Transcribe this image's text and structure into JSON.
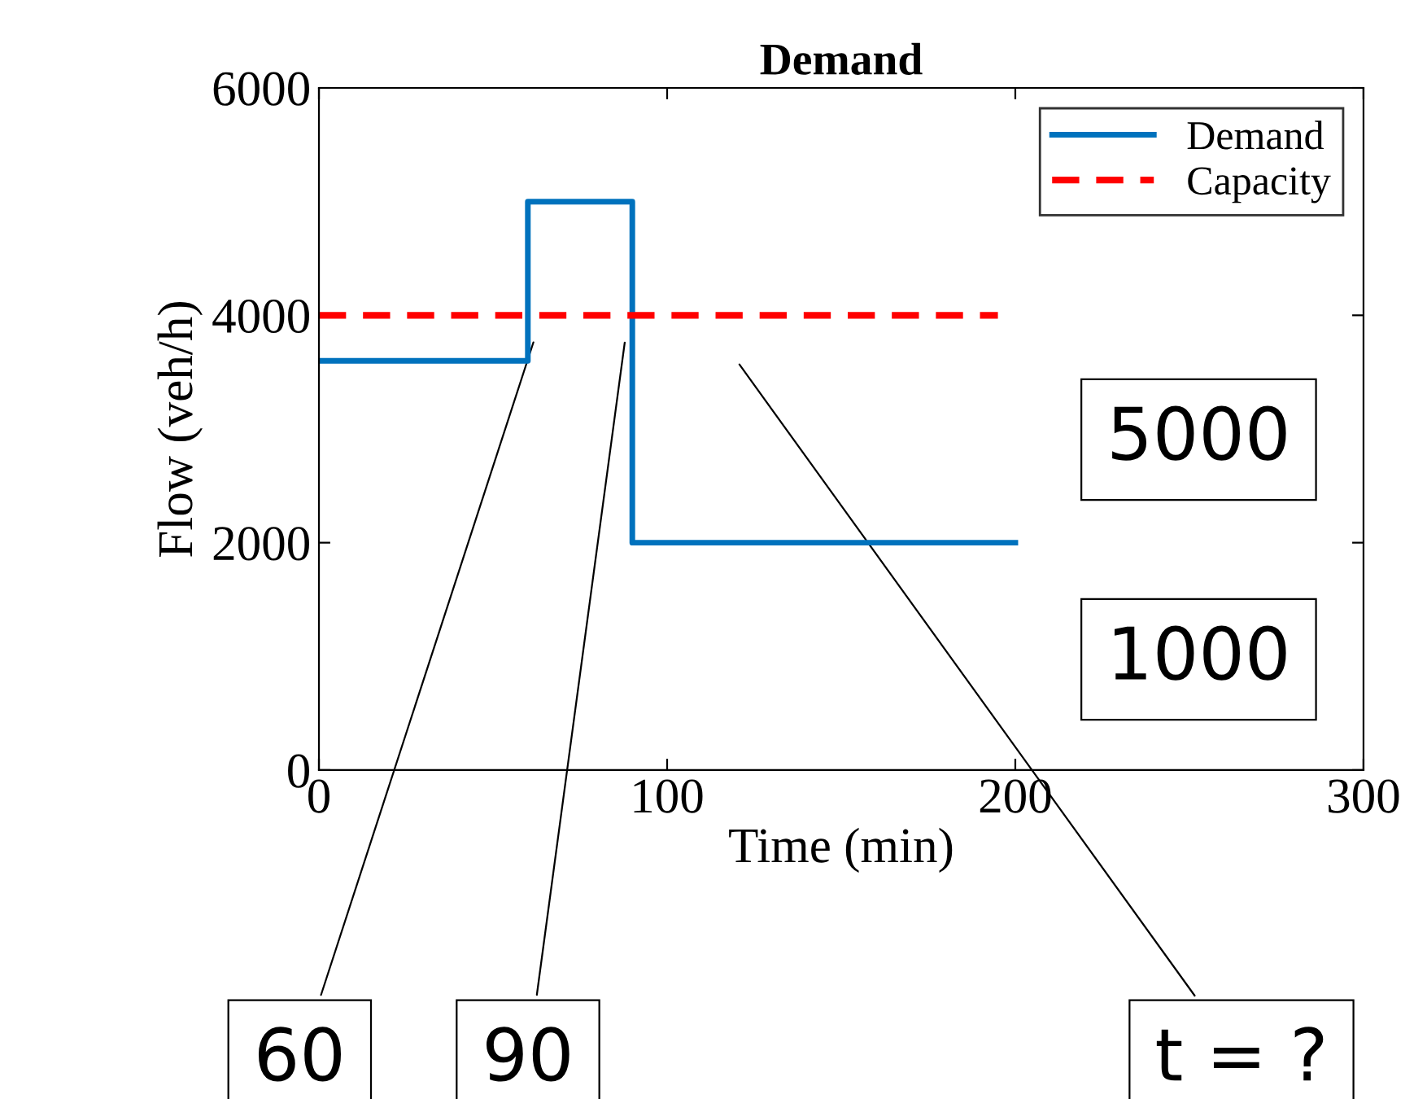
{
  "chart_data": {
    "type": "step",
    "title": "Demand",
    "xlabel": "Time (min)",
    "ylabel": "Flow (veh/h)",
    "x": [
      0,
      60,
      90,
      200
    ],
    "series": [
      {
        "name": "Demand",
        "color": "#0072bd",
        "values": [
          3600,
          5000,
          2000,
          2000
        ],
        "line_style": "solid"
      },
      {
        "name": "Capacity",
        "type": "line",
        "color": "#ff0000",
        "x": [
          0,
          195
        ],
        "values": [
          4000,
          4000
        ],
        "line_style": "dashed"
      }
    ],
    "xlim": [
      0,
      300
    ],
    "xticks": [
      0,
      100,
      200,
      300
    ],
    "ylim": [
      0,
      6000
    ],
    "yticks": [
      0,
      2000,
      4000,
      6000
    ],
    "grid": false,
    "legend": "top right",
    "annotations": [
      "5000",
      "1000",
      {
        "text": "60",
        "x": 62,
        "y": 3800
      },
      {
        "text": "90",
        "x": 88,
        "y": 3800
      },
      "t = ?"
    ]
  }
}
